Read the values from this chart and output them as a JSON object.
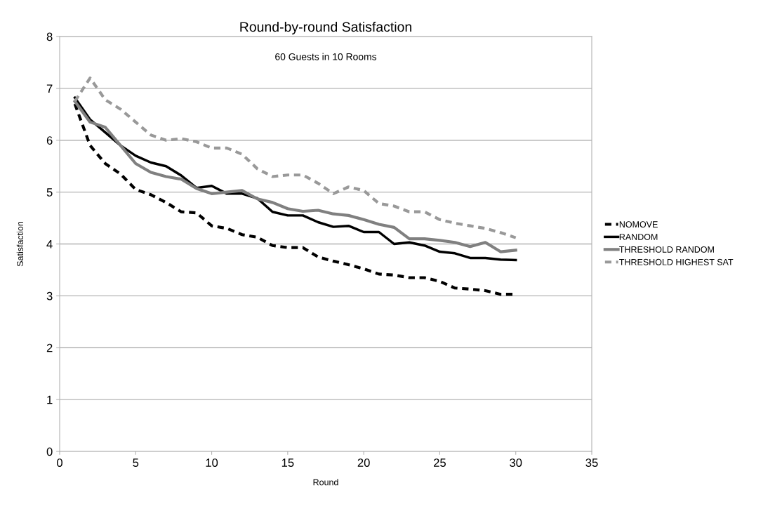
{
  "chart_data": {
    "type": "line",
    "title": "Round-by-round Satisfaction",
    "subtitle": "60 Guests in 10 Rooms",
    "xlabel": "Round",
    "ylabel": "Satisfaction",
    "x": [
      1,
      2,
      3,
      4,
      5,
      6,
      7,
      8,
      9,
      10,
      11,
      12,
      13,
      14,
      15,
      16,
      17,
      18,
      19,
      20,
      21,
      22,
      23,
      24,
      25,
      26,
      27,
      28,
      29,
      30
    ],
    "series": [
      {
        "name": "NOMOVE",
        "color": "#000000",
        "line_style": "dashed",
        "values": [
          6.7,
          5.9,
          5.55,
          5.35,
          5.05,
          4.95,
          4.8,
          4.62,
          4.6,
          4.35,
          4.3,
          4.18,
          4.13,
          3.97,
          3.93,
          3.93,
          3.75,
          3.67,
          3.6,
          3.52,
          3.42,
          3.4,
          3.35,
          3.35,
          3.28,
          3.15,
          3.13,
          3.1,
          3.03,
          3.03
        ]
      },
      {
        "name": "RANDOM",
        "color": "#000000",
        "line_style": "solid",
        "values": [
          6.82,
          6.4,
          6.15,
          5.9,
          5.7,
          5.57,
          5.5,
          5.32,
          5.08,
          5.12,
          4.97,
          4.97,
          4.88,
          4.62,
          4.55,
          4.55,
          4.42,
          4.33,
          4.35,
          4.23,
          4.23,
          4.0,
          4.03,
          3.97,
          3.85,
          3.82,
          3.73,
          3.73,
          3.7,
          3.69
        ]
      },
      {
        "name": "THRESHOLD RANDOM",
        "color": "#808080",
        "line_style": "solid",
        "values": [
          6.75,
          6.35,
          6.25,
          5.9,
          5.55,
          5.38,
          5.3,
          5.25,
          5.07,
          4.97,
          5.0,
          5.03,
          4.87,
          4.8,
          4.68,
          4.63,
          4.65,
          4.58,
          4.55,
          4.47,
          4.38,
          4.32,
          4.1,
          4.1,
          4.07,
          4.03,
          3.95,
          4.03,
          3.85,
          3.88
        ]
      },
      {
        "name": "THRESHOLD HIGHEST SAT",
        "color": "#999999",
        "line_style": "dashed",
        "values": [
          6.75,
          7.2,
          6.78,
          6.6,
          6.35,
          6.1,
          6.0,
          6.03,
          5.97,
          5.85,
          5.85,
          5.73,
          5.45,
          5.3,
          5.33,
          5.33,
          5.17,
          4.97,
          5.1,
          5.03,
          4.78,
          4.73,
          4.62,
          4.62,
          4.47,
          4.4,
          4.35,
          4.3,
          4.22,
          4.12
        ]
      }
    ],
    "xlim": [
      0,
      35
    ],
    "xticks": [
      0,
      5,
      10,
      15,
      20,
      25,
      30,
      35
    ],
    "ylim": [
      0,
      8
    ],
    "yticks": [
      0,
      1,
      2,
      3,
      4,
      5,
      6,
      7,
      8
    ],
    "grid": "y",
    "legend": "right",
    "marker": "none"
  }
}
